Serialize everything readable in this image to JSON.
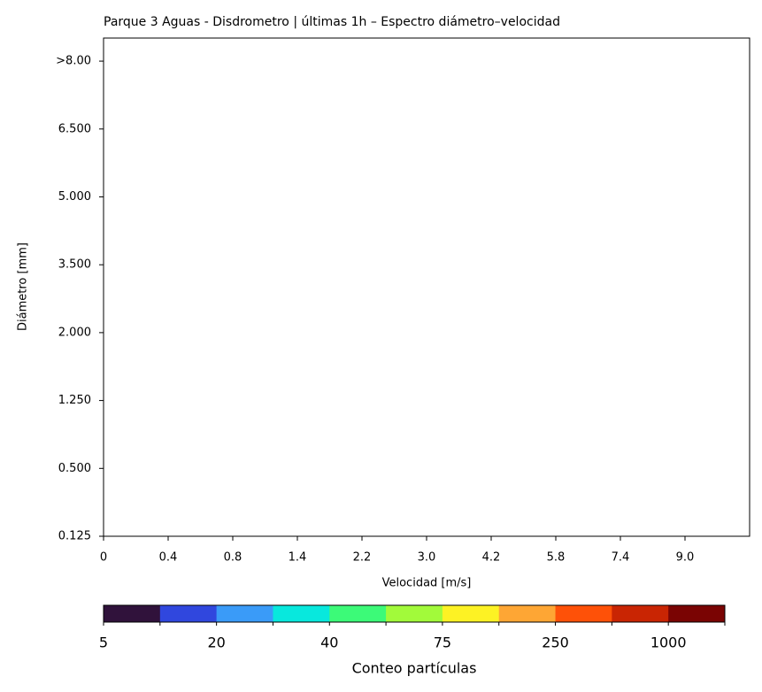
{
  "chart_data": {
    "type": "heatmap",
    "title": "Parque 3 Aguas - Disdrometro | últimas 1h – Espectro diámetro–velocidad",
    "x_label": "Velocidad [m/s]",
    "y_label": "Diámetro [mm]",
    "xlim": [
      0,
      10
    ],
    "xticks": [
      0,
      {
        "value": 1,
        "label": "0.4"
      },
      {
        "value": 2,
        "label": "0.8"
      },
      {
        "value": 3,
        "label": "1.4"
      },
      {
        "value": 4,
        "label": "2.2"
      },
      {
        "value": 5,
        "label": "3.0"
      },
      {
        "value": 6,
        "label": "4.2"
      },
      {
        "value": 7,
        "label": "5.8"
      },
      {
        "value": 8,
        "label": "7.4"
      },
      {
        "value": 9,
        "label": "9.0"
      }
    ],
    "ylim": [
      0,
      7.34
    ],
    "yticks": [
      {
        "value": 0,
        "label": "0.125"
      },
      {
        "value": 1,
        "label": "0.500"
      },
      {
        "value": 2,
        "label": "1.250"
      },
      {
        "value": 3,
        "label": "2.000"
      },
      {
        "value": 4,
        "label": "3.500"
      },
      {
        "value": 5,
        "label": "5.000"
      },
      {
        "value": 6,
        "label": "6.500"
      },
      {
        "value": 7,
        "label": ">8.00"
      }
    ],
    "colorbar": {
      "label": "Conteo partículas",
      "colors": [
        "#30123b",
        "#3047de",
        "#3a9bf8",
        "#08e8dd",
        "#3cfa78",
        "#a2fa3a",
        "#fdf224",
        "#fea634",
        "#fe5108",
        "#c92503",
        "#7a0403"
      ],
      "ticks": [
        5,
        20,
        40,
        75,
        250,
        1000
      ]
    }
  }
}
